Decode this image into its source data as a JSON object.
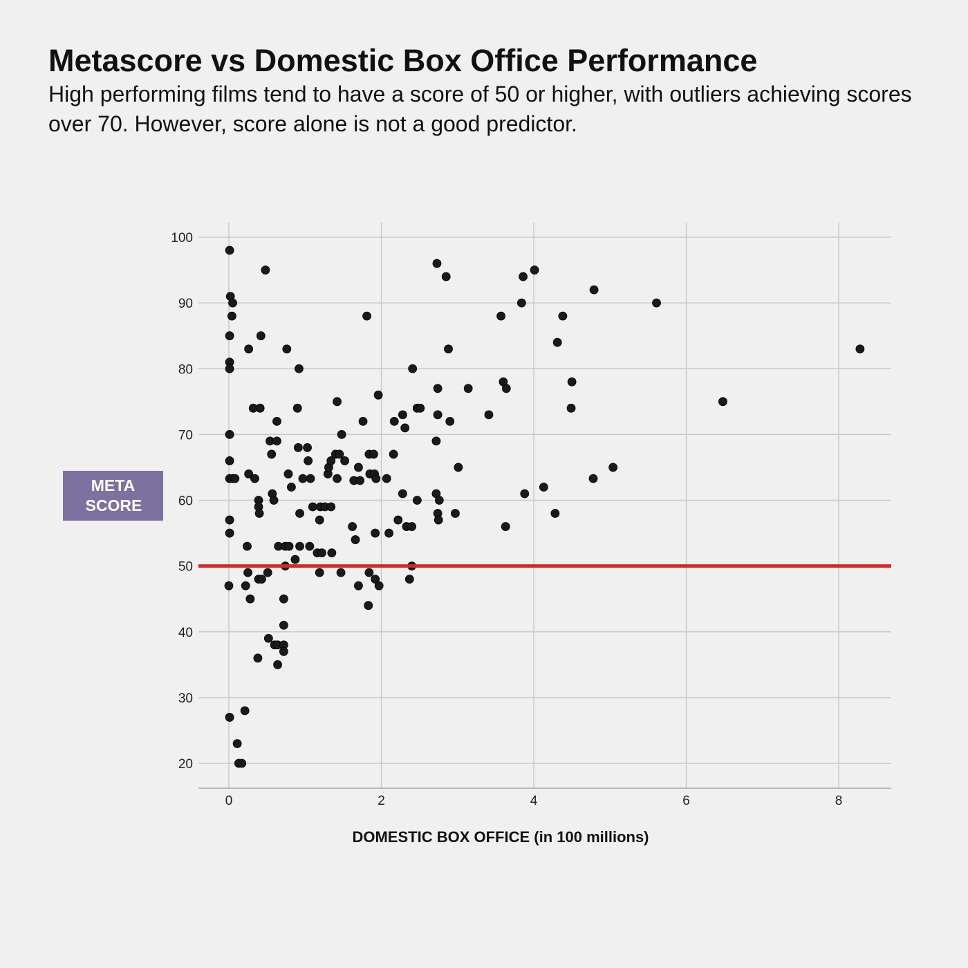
{
  "chart_data": {
    "type": "scatter",
    "title": "Metascore vs Domestic Box Office Performance",
    "subtitle": "High performing films tend to have a score of 50 or higher, with outliers achieving scores over 70.  However, score alone is not a good predictor.",
    "xlabel": "DOMESTIC BOX OFFICE (in 100 millions)",
    "ylabel": "META SCORE",
    "xlim": [
      -0.2,
      8.7
    ],
    "ylim": [
      16.2,
      102
    ],
    "xticks": [
      0,
      2,
      4,
      6,
      8
    ],
    "yticks": [
      20,
      30,
      40,
      50,
      60,
      70,
      80,
      90,
      100
    ],
    "grid": true,
    "reference_line": {
      "y": 50,
      "color": "#d42a2a"
    },
    "point_color": "#1a1a1a",
    "highlight_color": "#7d729f",
    "points": [
      [
        0.01,
        98
      ],
      [
        0.48,
        95
      ],
      [
        0.02,
        91
      ],
      [
        0.05,
        90
      ],
      [
        0.04,
        88
      ],
      [
        0.01,
        85
      ],
      [
        0.42,
        85
      ],
      [
        0.01,
        81
      ],
      [
        0.01,
        80
      ],
      [
        0.26,
        83
      ],
      [
        0.76,
        83
      ],
      [
        0.92,
        80
      ],
      [
        0.01,
        70
      ],
      [
        0.01,
        66
      ],
      [
        0.01,
        63.3
      ],
      [
        0.05,
        63.3
      ],
      [
        0.08,
        63.3
      ],
      [
        0.01,
        57
      ],
      [
        0.01,
        55
      ],
      [
        0.0,
        47
      ],
      [
        0.26,
        64
      ],
      [
        0.34,
        63.3
      ],
      [
        0.32,
        74
      ],
      [
        0.41,
        74
      ],
      [
        0.39,
        60
      ],
      [
        0.39,
        59
      ],
      [
        0.4,
        58
      ],
      [
        0.24,
        53
      ],
      [
        0.25,
        49
      ],
      [
        0.22,
        47
      ],
      [
        0.28,
        45
      ],
      [
        0.39,
        48
      ],
      [
        0.43,
        48
      ],
      [
        0.51,
        49
      ],
      [
        0.54,
        69
      ],
      [
        0.63,
        69
      ],
      [
        0.56,
        67
      ],
      [
        0.63,
        72
      ],
      [
        0.57,
        61
      ],
      [
        0.59,
        60
      ],
      [
        0.65,
        53
      ],
      [
        0.74,
        53
      ],
      [
        0.79,
        53
      ],
      [
        0.78,
        64
      ],
      [
        0.82,
        62
      ],
      [
        0.74,
        50
      ],
      [
        0.87,
        51
      ],
      [
        0.72,
        45
      ],
      [
        0.72,
        41
      ],
      [
        0.52,
        39
      ],
      [
        0.6,
        38
      ],
      [
        0.64,
        38
      ],
      [
        0.72,
        38
      ],
      [
        0.72,
        37
      ],
      [
        0.38,
        36
      ],
      [
        0.64,
        35
      ],
      [
        0.01,
        27
      ],
      [
        0.21,
        28
      ],
      [
        0.11,
        23
      ],
      [
        0.13,
        20
      ],
      [
        0.17,
        20
      ],
      [
        0.9,
        74
      ],
      [
        0.91,
        68
      ],
      [
        1.03,
        68
      ],
      [
        0.97,
        63.3
      ],
      [
        1.07,
        63.3
      ],
      [
        1.04,
        66
      ],
      [
        0.93,
        58
      ],
      [
        0.93,
        53
      ],
      [
        1.06,
        53
      ],
      [
        1.1,
        59
      ],
      [
        1.2,
        59
      ],
      [
        1.26,
        59
      ],
      [
        1.34,
        59
      ],
      [
        1.19,
        57
      ],
      [
        1.16,
        52
      ],
      [
        1.22,
        52
      ],
      [
        1.35,
        52
      ],
      [
        1.19,
        49
      ],
      [
        1.3,
        64
      ],
      [
        1.31,
        65
      ],
      [
        1.34,
        66
      ],
      [
        1.4,
        67
      ],
      [
        1.45,
        67
      ],
      [
        1.42,
        63.3
      ],
      [
        1.42,
        75
      ],
      [
        1.48,
        70
      ],
      [
        1.52,
        66
      ],
      [
        1.47,
        49
      ],
      [
        1.62,
        56
      ],
      [
        1.66,
        54
      ],
      [
        1.64,
        63
      ],
      [
        1.7,
        65
      ],
      [
        1.72,
        63
      ],
      [
        1.76,
        72
      ],
      [
        1.81,
        88
      ],
      [
        1.84,
        67
      ],
      [
        1.9,
        67
      ],
      [
        1.85,
        64
      ],
      [
        1.91,
        64
      ],
      [
        1.93,
        63.3
      ],
      [
        1.92,
        55
      ],
      [
        1.84,
        49
      ],
      [
        1.92,
        48
      ],
      [
        1.97,
        47
      ],
      [
        1.7,
        47
      ],
      [
        1.83,
        44
      ],
      [
        1.96,
        76
      ],
      [
        2.07,
        63.3
      ],
      [
        2.1,
        55
      ],
      [
        2.16,
        67
      ],
      [
        2.17,
        72
      ],
      [
        2.22,
        57
      ],
      [
        2.28,
        73
      ],
      [
        2.31,
        71
      ],
      [
        2.28,
        61
      ],
      [
        2.33,
        56
      ],
      [
        2.4,
        56
      ],
      [
        2.41,
        80
      ],
      [
        2.47,
        74
      ],
      [
        2.51,
        74
      ],
      [
        2.47,
        60
      ],
      [
        2.4,
        50
      ],
      [
        2.37,
        48
      ],
      [
        2.73,
        96
      ],
      [
        2.85,
        94
      ],
      [
        2.88,
        83
      ],
      [
        2.74,
        77
      ],
      [
        2.74,
        73
      ],
      [
        2.9,
        72
      ],
      [
        2.72,
        69
      ],
      [
        2.72,
        61
      ],
      [
        2.76,
        60
      ],
      [
        2.74,
        58
      ],
      [
        2.75,
        57
      ],
      [
        2.97,
        58
      ],
      [
        3.01,
        65
      ],
      [
        3.14,
        77
      ],
      [
        3.41,
        73
      ],
      [
        3.57,
        88
      ],
      [
        3.6,
        78
      ],
      [
        3.64,
        77
      ],
      [
        3.63,
        56
      ],
      [
        3.84,
        90
      ],
      [
        3.86,
        94
      ],
      [
        3.88,
        61
      ],
      [
        4.01,
        95
      ],
      [
        4.13,
        62
      ],
      [
        4.28,
        58
      ],
      [
        4.31,
        84
      ],
      [
        4.38,
        88
      ],
      [
        4.49,
        74
      ],
      [
        4.5,
        78
      ],
      [
        4.79,
        92
      ],
      [
        4.78,
        63.3
      ],
      [
        5.04,
        65
      ],
      [
        5.61,
        90
      ],
      [
        6.48,
        75
      ],
      [
        8.28,
        83
      ]
    ]
  }
}
